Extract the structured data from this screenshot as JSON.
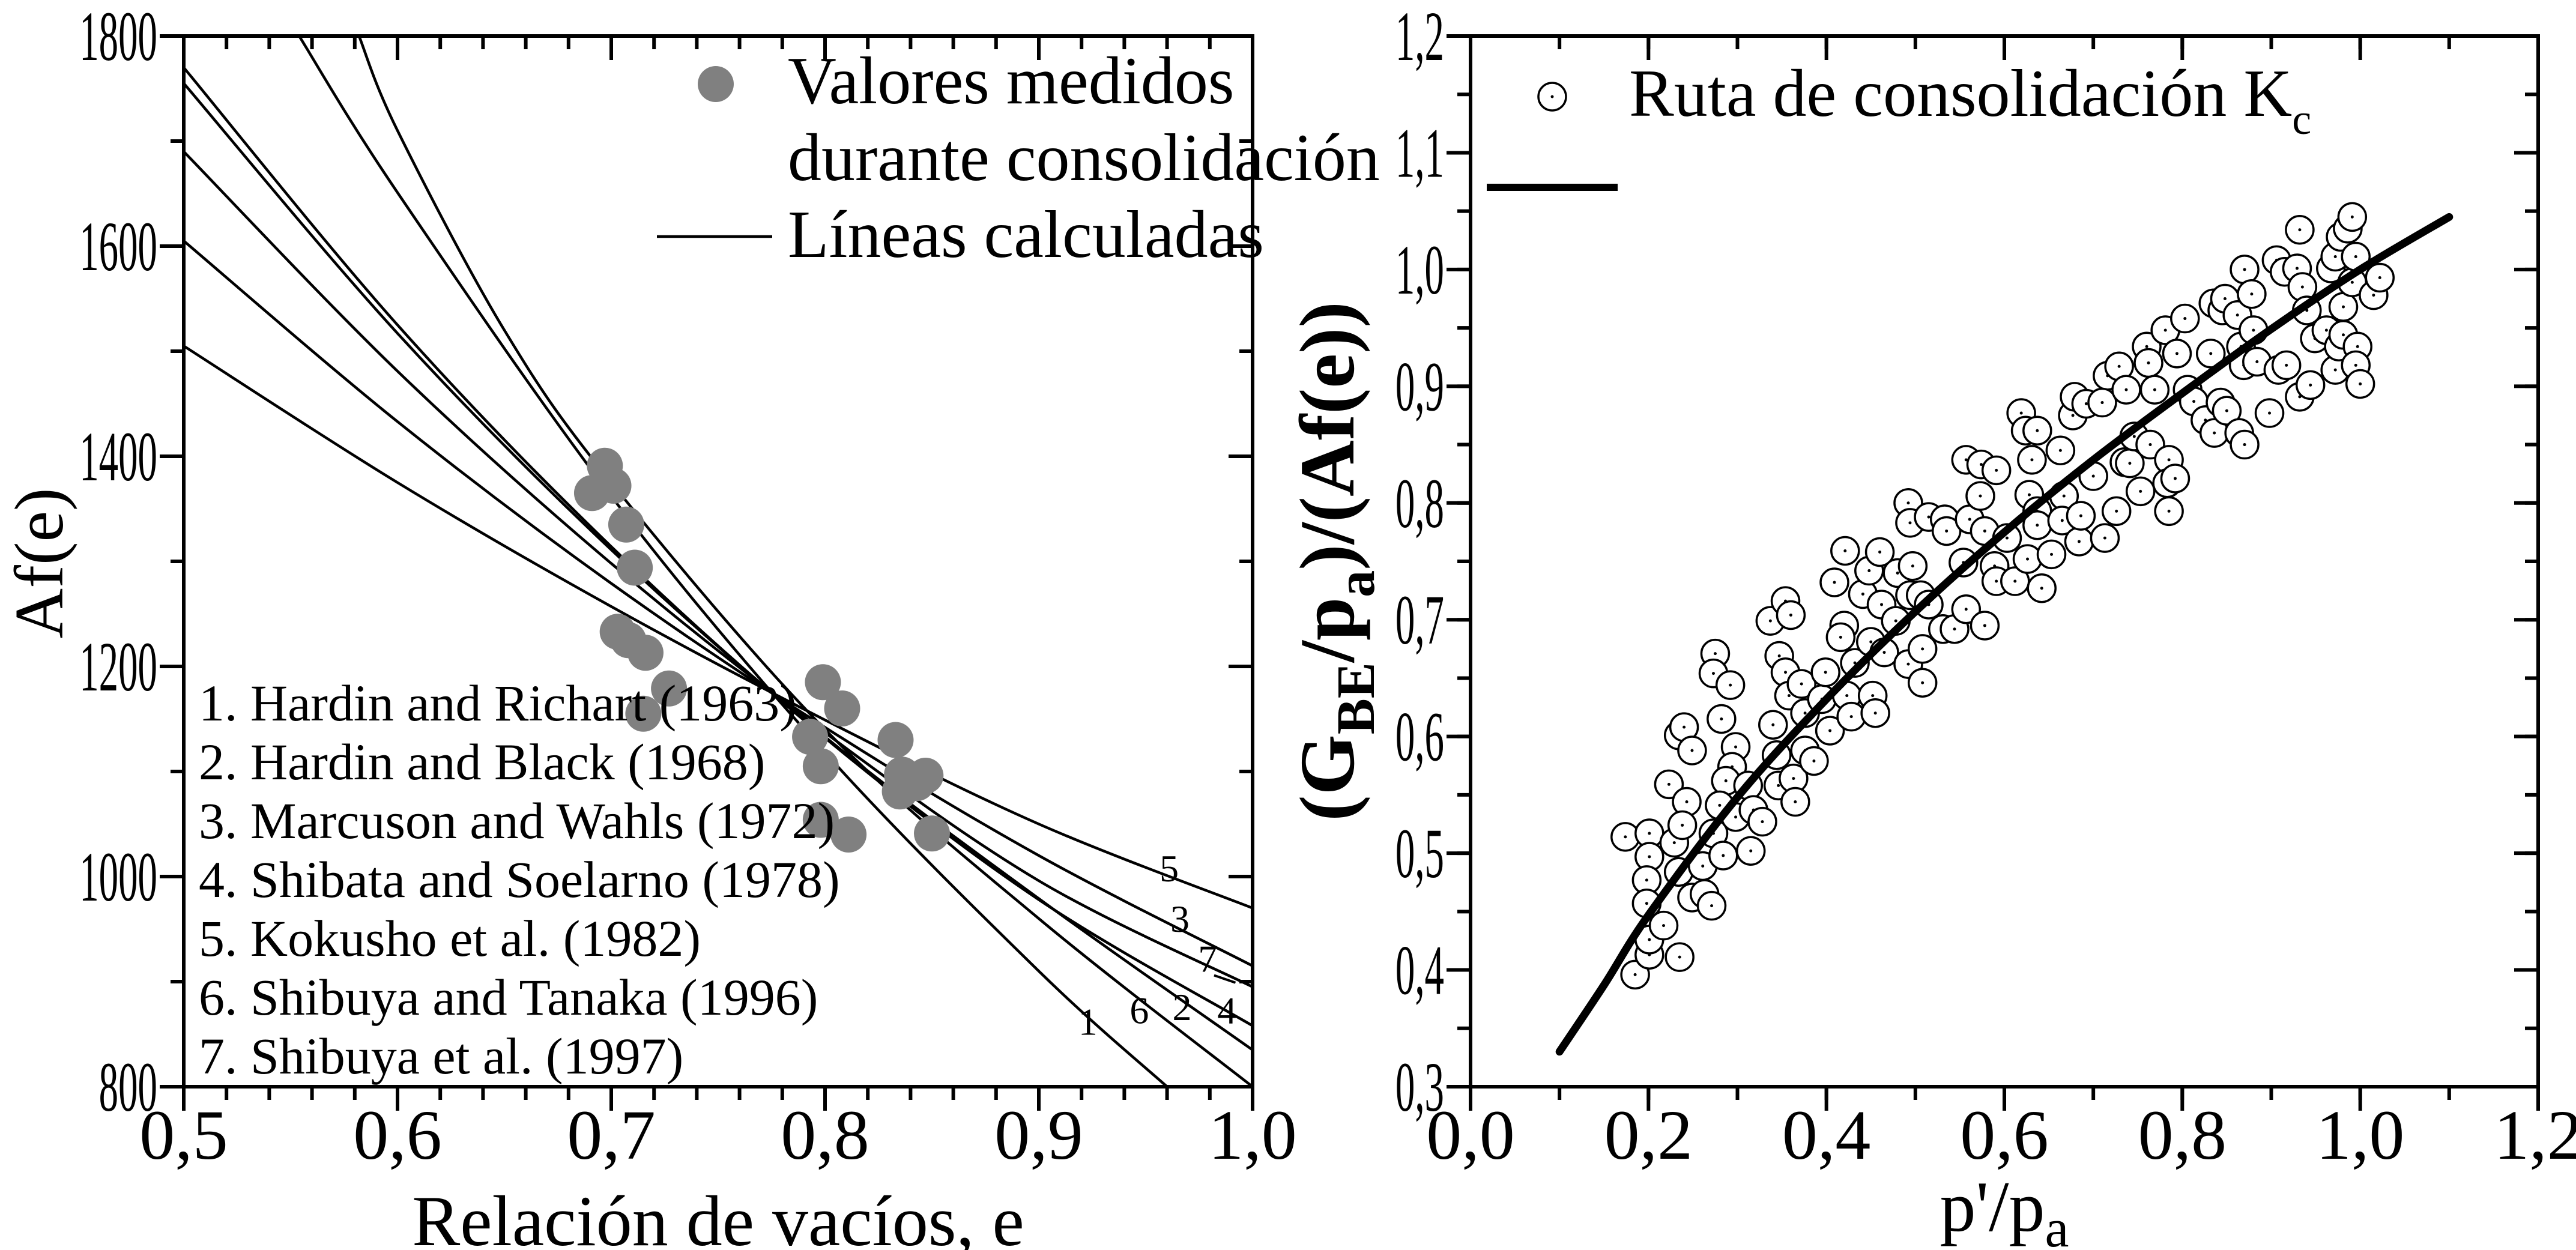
{
  "chart_data": [
    {
      "type": "line+scatter",
      "xlabel": "Relación de vacíos, e",
      "ylabel": "Af(e)",
      "xlim": [
        0.5,
        1.0
      ],
      "ylim": [
        800,
        1800
      ],
      "grid": false,
      "xticks": [
        {
          "value": 0.5,
          "label": "0,5"
        },
        {
          "value": 0.6,
          "label": "0,6"
        },
        {
          "value": 0.7,
          "label": "0,7"
        },
        {
          "value": 0.8,
          "label": "0,8"
        },
        {
          "value": 0.9,
          "label": "0,9"
        },
        {
          "value": 1.0,
          "label": "1,0"
        }
      ],
      "yticks": [
        {
          "value": 800,
          "label": "800"
        },
        {
          "value": 1000,
          "label": "1000"
        },
        {
          "value": 1200,
          "label": "1200"
        },
        {
          "value": 1400,
          "label": "1400"
        },
        {
          "value": 1600,
          "label": "1600"
        },
        {
          "value": 1800,
          "label": "1800"
        }
      ],
      "legend": {
        "placement": "top-right",
        "scatter_line1": "Valores medidos",
        "scatter_line2": "durante consolidación",
        "line_label": "Líneas calculadas"
      },
      "marker_color": "#808080",
      "references": [
        "1. Hardin and Richart (1963)",
        "2. Hardin and Black (1968)",
        "3. Marcuson and Wahls (1972)",
        "4. Shibata and Soelarno (1978)",
        "5. Kokusho et al. (1982)",
        "6. Shibuya and Tanaka (1996)",
        "7. Shibuya et al. (1997)"
      ],
      "scatter": [
        [
          0.697,
          1391
        ],
        [
          0.691,
          1365
        ],
        [
          0.701,
          1372
        ],
        [
          0.707,
          1335
        ],
        [
          0.711,
          1294
        ],
        [
          0.703,
          1233
        ],
        [
          0.708,
          1225
        ],
        [
          0.716,
          1213
        ],
        [
          0.727,
          1179
        ],
        [
          0.715,
          1155
        ],
        [
          0.799,
          1185
        ],
        [
          0.808,
          1160
        ],
        [
          0.793,
          1133
        ],
        [
          0.798,
          1105
        ],
        [
          0.798,
          1054
        ],
        [
          0.811,
          1040
        ],
        [
          0.833,
          1130
        ],
        [
          0.836,
          1097
        ],
        [
          0.847,
          1096
        ],
        [
          0.835,
          1081
        ],
        [
          0.843,
          1089
        ],
        [
          0.85,
          1041
        ]
      ],
      "curves": [
        {
          "label": "1",
          "points": [
            [
              0.554,
              1800
            ],
            [
              0.6,
              1651
            ],
            [
              0.7,
              1362
            ],
            [
              0.8,
              1118
            ],
            [
              0.9,
              910
            ],
            [
              0.96,
              800
            ]
          ]
        },
        {
          "label": "2",
          "points": [
            [
              0.5,
              1755
            ],
            [
              0.6,
              1517
            ],
            [
              0.7,
              1311
            ],
            [
              0.8,
              1133
            ],
            [
              0.9,
              979
            ],
            [
              1.0,
              835
            ]
          ]
        },
        {
          "label": "3",
          "points": [
            [
              0.5,
              1605
            ],
            [
              0.6,
              1433
            ],
            [
              0.7,
              1279
            ],
            [
              0.8,
              1142
            ],
            [
              0.9,
              1020
            ],
            [
              1.0,
              915
            ]
          ]
        },
        {
          "label": "4",
          "points": [
            [
              0.5,
              1770
            ],
            [
              0.6,
              1525
            ],
            [
              0.7,
              1314
            ],
            [
              0.8,
              1132
            ],
            [
              0.9,
              978
            ],
            [
              1.0,
              858
            ]
          ]
        },
        {
          "label": "5",
          "points": [
            [
              0.5,
              1505
            ],
            [
              0.6,
              1375
            ],
            [
              0.7,
              1257
            ],
            [
              0.8,
              1149
            ],
            [
              0.9,
              1050
            ],
            [
              1.0,
              970
            ]
          ]
        },
        {
          "label": "6",
          "points": [
            [
              0.582,
              1800
            ],
            [
              0.6,
              1710
            ],
            [
              0.65,
              1520
            ],
            [
              0.7,
              1375
            ],
            [
              0.8,
              1140
            ],
            [
              0.9,
              960
            ],
            [
              1.0,
              800
            ]
          ]
        },
        {
          "label": "7",
          "points": [
            [
              0.5,
              1690
            ],
            [
              0.6,
              1481
            ],
            [
              0.7,
              1298
            ],
            [
              0.8,
              1137
            ],
            [
              0.9,
              996
            ],
            [
              1.0,
              895
            ]
          ]
        }
      ]
    },
    {
      "type": "line+scatter",
      "xlabel": {
        "main": "p'/p",
        "sub": "a"
      },
      "ylabel": {
        "p1": "(G",
        "s1": "BE",
        "p2": "/p",
        "s2": "a",
        "p3": ")/(Af(e))"
      },
      "xlim": [
        0.0,
        1.2
      ],
      "ylim": [
        0.3,
        1.2
      ],
      "grid": false,
      "xticks": [
        {
          "value": 0.0,
          "label": "0,0"
        },
        {
          "value": 0.2,
          "label": "0,2"
        },
        {
          "value": 0.4,
          "label": "0,4"
        },
        {
          "value": 0.6,
          "label": "0,6"
        },
        {
          "value": 0.8,
          "label": "0,8"
        },
        {
          "value": 1.0,
          "label": "1,0"
        },
        {
          "value": 1.2,
          "label": "1,2"
        }
      ],
      "yticks": [
        {
          "value": 0.3,
          "label": "0,3"
        },
        {
          "value": 0.4,
          "label": "0,4"
        },
        {
          "value": 0.5,
          "label": "0,5"
        },
        {
          "value": 0.6,
          "label": "0,6"
        },
        {
          "value": 0.7,
          "label": "0,7"
        },
        {
          "value": 0.8,
          "label": "0,8"
        },
        {
          "value": 0.9,
          "label": "0,9"
        },
        {
          "value": 1.0,
          "label": "1,0"
        },
        {
          "value": 1.1,
          "label": "1,1"
        },
        {
          "value": 1.2,
          "label": "1,2"
        }
      ],
      "legend": {
        "placement": "top-left",
        "scatter_label": "Ruta de consolidación K",
        "scatter_label_sub": "c"
      },
      "fit_line": [
        [
          0.1,
          0.33
        ],
        [
          0.15,
          0.387
        ],
        [
          0.2,
          0.447
        ],
        [
          0.3,
          0.548
        ],
        [
          0.4,
          0.632
        ],
        [
          0.5,
          0.707
        ],
        [
          0.6,
          0.775
        ],
        [
          0.7,
          0.837
        ],
        [
          0.8,
          0.894
        ],
        [
          0.9,
          0.949
        ],
        [
          1.0,
          1.0
        ],
        [
          1.1,
          1.045
        ]
      ],
      "scatter": [
        [
          0.174,
          0.514
        ],
        [
          0.201,
          0.517
        ],
        [
          0.201,
          0.497
        ],
        [
          0.198,
          0.477
        ],
        [
          0.198,
          0.457
        ],
        [
          0.185,
          0.396
        ],
        [
          0.201,
          0.413
        ],
        [
          0.201,
          0.426
        ],
        [
          0.217,
          0.438
        ],
        [
          0.235,
          0.411
        ],
        [
          0.229,
          0.509
        ],
        [
          0.234,
          0.484
        ],
        [
          0.223,
          0.559
        ],
        [
          0.243,
          0.544
        ],
        [
          0.238,
          0.524
        ],
        [
          0.249,
          0.462
        ],
        [
          0.261,
          0.489
        ],
        [
          0.263,
          0.465
        ],
        [
          0.271,
          0.455
        ],
        [
          0.273,
          0.517
        ],
        [
          0.284,
          0.498
        ],
        [
          0.234,
          0.601
        ],
        [
          0.24,
          0.608
        ],
        [
          0.249,
          0.588
        ],
        [
          0.275,
          0.671
        ],
        [
          0.273,
          0.654
        ],
        [
          0.292,
          0.644
        ],
        [
          0.282,
          0.615
        ],
        [
          0.298,
          0.591
        ],
        [
          0.294,
          0.574
        ],
        [
          0.287,
          0.562
        ],
        [
          0.28,
          0.541
        ],
        [
          0.298,
          0.531
        ],
        [
          0.312,
          0.558
        ],
        [
          0.318,
          0.537
        ],
        [
          0.315,
          0.502
        ],
        [
          0.328,
          0.527
        ],
        [
          0.337,
          0.699
        ],
        [
          0.354,
          0.716
        ],
        [
          0.36,
          0.704
        ],
        [
          0.347,
          0.669
        ],
        [
          0.354,
          0.655
        ],
        [
          0.358,
          0.635
        ],
        [
          0.34,
          0.61
        ],
        [
          0.344,
          0.584
        ],
        [
          0.346,
          0.558
        ],
        [
          0.363,
          0.564
        ],
        [
          0.365,
          0.544
        ],
        [
          0.372,
          0.645
        ],
        [
          0.376,
          0.62
        ],
        [
          0.376,
          0.588
        ],
        [
          0.386,
          0.579
        ],
        [
          0.395,
          0.632
        ],
        [
          0.399,
          0.655
        ],
        [
          0.404,
          0.605
        ],
        [
          0.409,
          0.732
        ],
        [
          0.421,
          0.759
        ],
        [
          0.42,
          0.695
        ],
        [
          0.416,
          0.685
        ],
        [
          0.423,
          0.635
        ],
        [
          0.432,
          0.663
        ],
        [
          0.428,
          0.617
        ],
        [
          0.441,
          0.722
        ],
        [
          0.448,
          0.742
        ],
        [
          0.46,
          0.758
        ],
        [
          0.45,
          0.681
        ],
        [
          0.452,
          0.635
        ],
        [
          0.455,
          0.62
        ],
        [
          0.462,
          0.713
        ],
        [
          0.465,
          0.672
        ],
        [
          0.478,
          0.699
        ],
        [
          0.48,
          0.74
        ],
        [
          0.492,
          0.8
        ],
        [
          0.494,
          0.783
        ],
        [
          0.497,
          0.746
        ],
        [
          0.494,
          0.721
        ],
        [
          0.492,
          0.662
        ],
        [
          0.506,
          0.721
        ],
        [
          0.508,
          0.675
        ],
        [
          0.508,
          0.646
        ],
        [
          0.515,
          0.788
        ],
        [
          0.515,
          0.713
        ],
        [
          0.533,
          0.786
        ],
        [
          0.535,
          0.776
        ],
        [
          0.531,
          0.692
        ],
        [
          0.544,
          0.692
        ],
        [
          0.557,
          0.837
        ],
        [
          0.554,
          0.749
        ],
        [
          0.557,
          0.709
        ],
        [
          0.561,
          0.786
        ],
        [
          0.574,
          0.833
        ],
        [
          0.573,
          0.806
        ],
        [
          0.578,
          0.776
        ],
        [
          0.578,
          0.695
        ],
        [
          0.591,
          0.828
        ],
        [
          0.589,
          0.746
        ],
        [
          0.591,
          0.733
        ],
        [
          0.603,
          0.77
        ],
        [
          0.612,
          0.733
        ],
        [
          0.619,
          0.877
        ],
        [
          0.624,
          0.862
        ],
        [
          0.631,
          0.837
        ],
        [
          0.628,
          0.807
        ],
        [
          0.626,
          0.752
        ],
        [
          0.637,
          0.862
        ],
        [
          0.637,
          0.793
        ],
        [
          0.637,
          0.781
        ],
        [
          0.642,
          0.727
        ],
        [
          0.653,
          0.756
        ],
        [
          0.663,
          0.845
        ],
        [
          0.667,
          0.806
        ],
        [
          0.665,
          0.785
        ],
        [
          0.677,
          0.875
        ],
        [
          0.679,
          0.891
        ],
        [
          0.684,
          0.767
        ],
        [
          0.686,
          0.789
        ],
        [
          0.692,
          0.885
        ],
        [
          0.7,
          0.823
        ],
        [
          0.713,
          0.77
        ],
        [
          0.716,
          0.909
        ],
        [
          0.71,
          0.886
        ],
        [
          0.726,
          0.793
        ],
        [
          0.729,
          0.917
        ],
        [
          0.737,
          0.897
        ],
        [
          0.735,
          0.835
        ],
        [
          0.741,
          0.834
        ],
        [
          0.746,
          0.857
        ],
        [
          0.753,
          0.81
        ],
        [
          0.76,
          0.934
        ],
        [
          0.762,
          0.92
        ],
        [
          0.764,
          0.85
        ],
        [
          0.769,
          0.897
        ],
        [
          0.785,
          0.837
        ],
        [
          0.785,
          0.793
        ],
        [
          0.783,
          0.817
        ],
        [
          0.792,
          0.821
        ],
        [
          0.781,
          0.948
        ],
        [
          0.794,
          0.928
        ],
        [
          0.803,
          0.958
        ],
        [
          0.806,
          0.897
        ],
        [
          0.813,
          0.887
        ],
        [
          0.826,
          0.871
        ],
        [
          0.832,
          0.928
        ],
        [
          0.835,
          0.971
        ],
        [
          0.836,
          0.86
        ],
        [
          0.843,
          0.886
        ],
        [
          0.845,
          0.965
        ],
        [
          0.848,
          0.975
        ],
        [
          0.85,
          0.879
        ],
        [
          0.862,
          0.961
        ],
        [
          0.864,
          0.86
        ],
        [
          0.866,
          0.934
        ],
        [
          0.869,
          0.918
        ],
        [
          0.87,
          0.85
        ],
        [
          0.87,
          1.0
        ],
        [
          0.878,
          0.979
        ],
        [
          0.88,
          0.948
        ],
        [
          0.884,
          0.921
        ],
        [
          0.898,
          0.877
        ],
        [
          0.906,
          1.008
        ],
        [
          0.908,
          0.914
        ],
        [
          0.915,
          0.998
        ],
        [
          0.917,
          0.918
        ],
        [
          0.929,
          1.001
        ],
        [
          0.932,
          1.034
        ],
        [
          0.935,
          0.985
        ],
        [
          0.932,
          0.891
        ],
        [
          0.94,
          0.965
        ],
        [
          0.949,
          0.941
        ],
        [
          0.944,
          0.901
        ],
        [
          0.962,
          0.948
        ],
        [
          0.967,
          1.001
        ],
        [
          0.972,
          1.011
        ],
        [
          0.972,
          0.914
        ],
        [
          0.976,
          0.934
        ],
        [
          0.981,
          0.968
        ],
        [
          0.981,
          0.944
        ],
        [
          0.978,
          1.028
        ],
        [
          0.986,
          1.035
        ],
        [
          0.991,
          1.045
        ],
        [
          0.991,
          0.989
        ],
        [
          0.995,
          1.011
        ],
        [
          0.997,
          0.934
        ],
        [
          0.995,
          0.918
        ],
        [
          1.0,
          0.902
        ],
        [
          1.015,
          0.978
        ],
        [
          1.022,
          0.993
        ]
      ]
    }
  ]
}
